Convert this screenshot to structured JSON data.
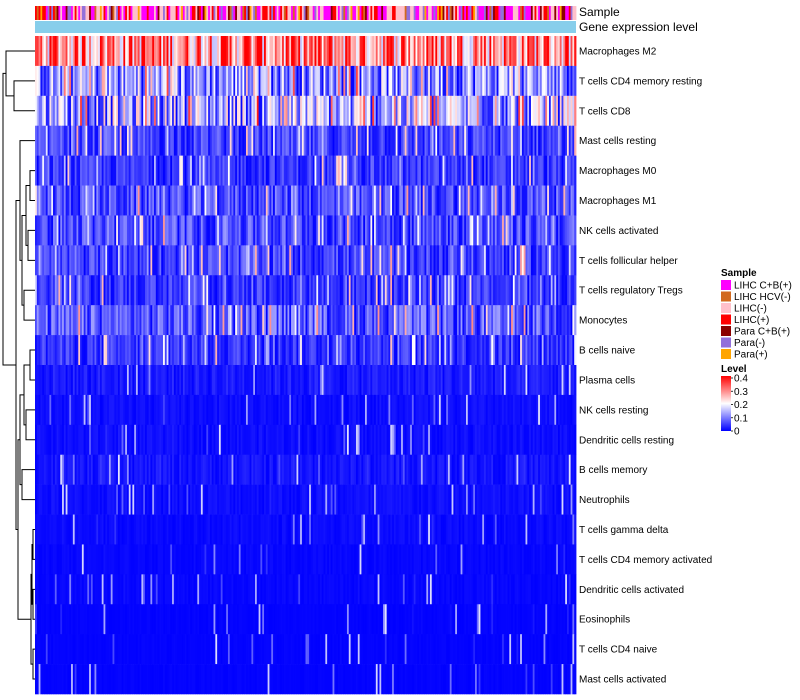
{
  "chart_data": {
    "type": "heatmap",
    "title": "",
    "annotation_tracks": [
      "Sample",
      "Gene expression level"
    ],
    "rows": [
      {
        "label": "Macrophages M2",
        "mean": 0.3
      },
      {
        "label": "T cells CD4 memory resting",
        "mean": 0.14
      },
      {
        "label": "T cells CD8",
        "mean": 0.16
      },
      {
        "label": "Mast cells resting",
        "mean": 0.06
      },
      {
        "label": "Macrophages M0",
        "mean": 0.05
      },
      {
        "label": "Macrophages M1",
        "mean": 0.07
      },
      {
        "label": "NK cells activated",
        "mean": 0.07
      },
      {
        "label": "T cells follicular helper",
        "mean": 0.06
      },
      {
        "label": "T cells regulatory  Tregs",
        "mean": 0.05
      },
      {
        "label": "Monocytes",
        "mean": 0.08
      },
      {
        "label": "B cells naive",
        "mean": 0.05
      },
      {
        "label": "Plasma cells",
        "mean": 0.04
      },
      {
        "label": "NK cells resting",
        "mean": 0.02
      },
      {
        "label": "Dendritic cells resting",
        "mean": 0.02
      },
      {
        "label": "B cells memory",
        "mean": 0.03
      },
      {
        "label": "Neutrophils",
        "mean": 0.02
      },
      {
        "label": "T cells gamma delta",
        "mean": 0.015
      },
      {
        "label": "T cells CD4 memory activated",
        "mean": 0.01
      },
      {
        "label": "Dendritic cells activated",
        "mean": 0.01
      },
      {
        "label": "Eosinophils",
        "mean": 0.005
      },
      {
        "label": "T cells CD4 naive",
        "mean": 0.005
      },
      {
        "label": "Mast cells activated",
        "mean": 0.005
      }
    ],
    "n_columns": 300,
    "color_scale": {
      "min": 0,
      "max": 0.4,
      "colors": [
        "#0000ff",
        "#ffffff",
        "#ff0000"
      ]
    },
    "legends": {
      "sample": {
        "title": "Sample",
        "items": [
          {
            "label": "LIHC C+B(+)",
            "color": "#ff00ff"
          },
          {
            "label": "LIHC HCV(-)",
            "color": "#d2691e"
          },
          {
            "label": "LIHC(-)",
            "color": "#ffc0cb"
          },
          {
            "label": "LIHC(+)",
            "color": "#ff0000"
          },
          {
            "label": "Para C+B(+)",
            "color": "#8b0000"
          },
          {
            "label": "Para(-)",
            "color": "#9370db"
          },
          {
            "label": "Para(+)",
            "color": "#ffa500"
          }
        ]
      },
      "level": {
        "title": "Level",
        "ticks": [
          "0.4",
          "0.3",
          "0.2",
          "0.1",
          "0"
        ]
      }
    },
    "expression_track_color": "#87ceeb"
  }
}
